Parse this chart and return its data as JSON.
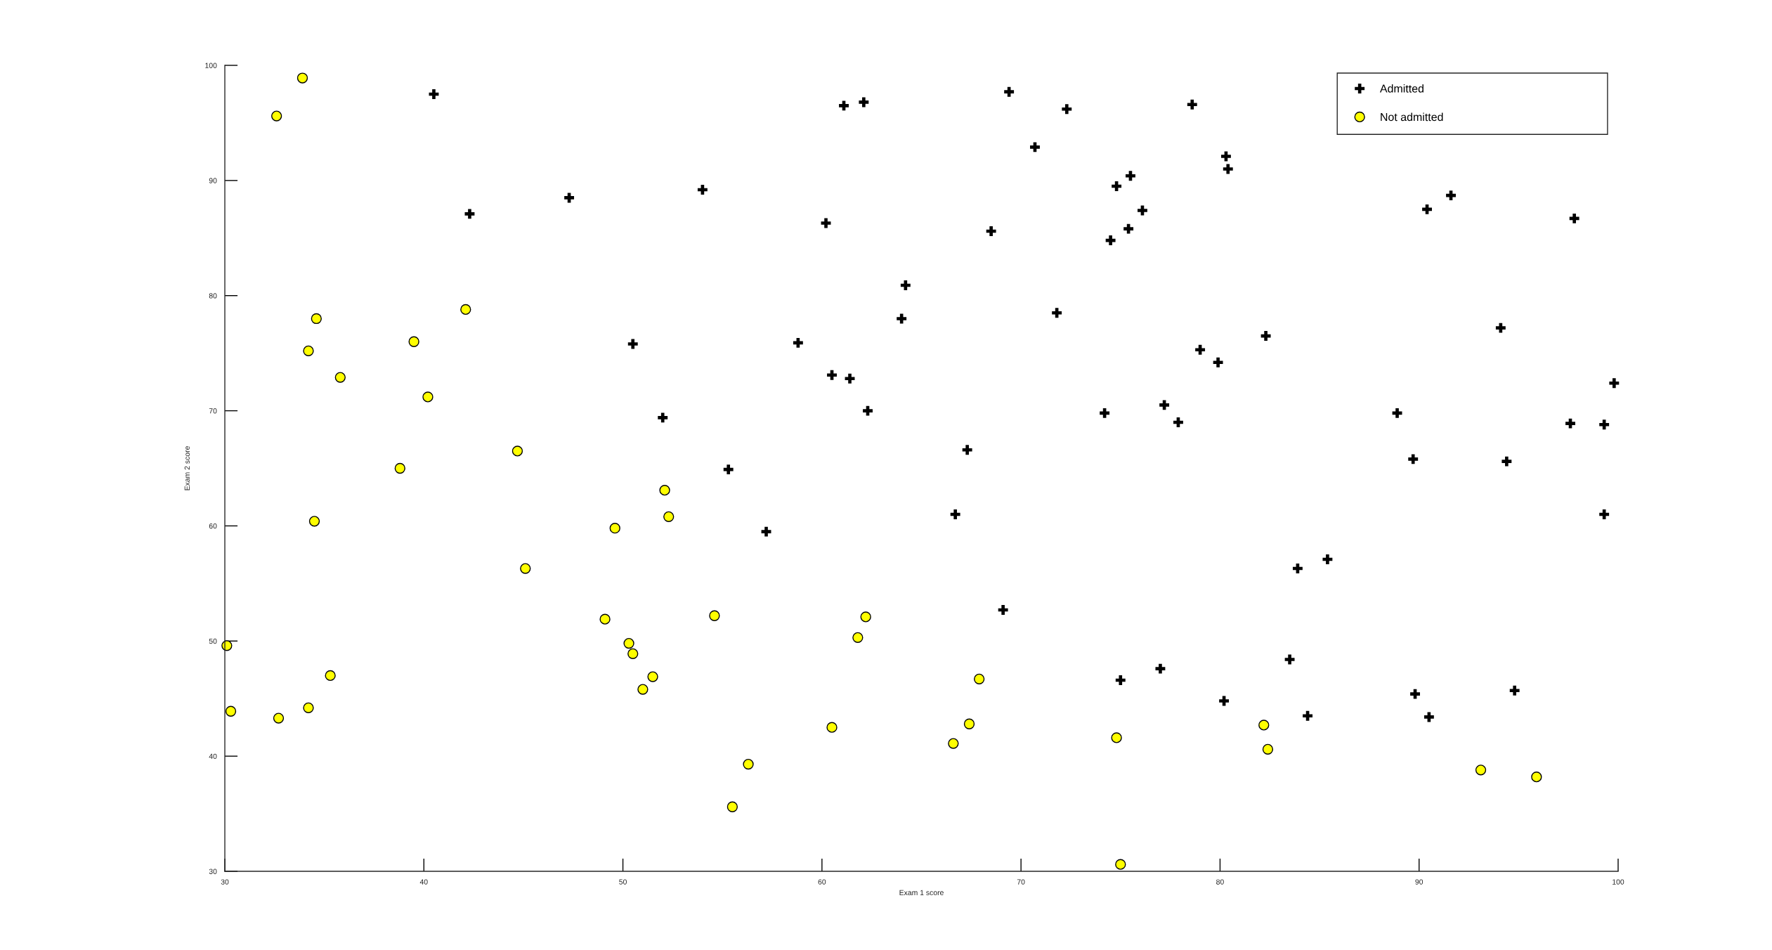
{
  "chart_data": {
    "type": "scatter",
    "xlabel": "Exam 1 score",
    "ylabel": "Exam 2 score",
    "xlim": [
      30,
      100
    ],
    "ylim": [
      30,
      100
    ],
    "xticks": [
      30,
      40,
      50,
      60,
      70,
      80,
      90,
      100
    ],
    "yticks": [
      30,
      40,
      50,
      60,
      70,
      80,
      90,
      100
    ],
    "grid": false,
    "legend": "top right",
    "series": [
      {
        "name": "Admitted",
        "color": "#000000",
        "marker": "cross",
        "x": [
          60.2,
          79.0,
          61.1,
          75.0,
          76.1,
          84.4,
          82.3,
          69.4,
          54.0,
          69.1,
          70.7,
          77.0,
          89.7,
          77.9,
          62.3,
          80.2,
          61.4,
          85.4,
          52.0,
          64.2,
          83.9,
          94.4,
          77.2,
          97.8,
          62.1,
          91.6,
          79.9,
          99.3,
          90.5,
          97.6,
          74.2,
          71.8,
          75.4,
          40.5,
          80.3,
          66.7,
          64.0,
          72.3,
          60.5,
          58.8,
          99.8,
          47.3,
          50.5,
          88.9,
          94.8,
          67.3,
          57.2,
          80.4,
          68.5,
          75.5,
          78.6,
          94.1,
          90.4,
          74.5,
          89.8,
          83.5,
          42.3,
          99.3,
          55.3,
          74.8
        ],
        "values": [
          86.3,
          75.3,
          96.5,
          46.6,
          87.4,
          43.5,
          76.5,
          97.7,
          89.2,
          52.7,
          92.9,
          47.6,
          65.8,
          69.0,
          70.0,
          44.8,
          72.8,
          57.1,
          69.4,
          80.9,
          56.3,
          65.6,
          70.5,
          86.7,
          96.8,
          88.7,
          74.2,
          61.0,
          43.4,
          68.9,
          69.8,
          78.5,
          85.8,
          97.5,
          92.1,
          61.0,
          78.0,
          96.2,
          73.1,
          75.9,
          72.4,
          88.5,
          75.8,
          69.8,
          45.7,
          66.6,
          59.5,
          91.0,
          85.6,
          90.4,
          96.6,
          77.2,
          87.5,
          84.8,
          45.4,
          48.4,
          87.1,
          68.8,
          64.9,
          89.5
        ]
      },
      {
        "name": "Not admitted",
        "color": "#ffff00",
        "marker": "circle",
        "x": [
          34.6,
          30.3,
          35.8,
          45.1,
          95.9,
          75.0,
          39.5,
          67.9,
          67.4,
          50.5,
          34.2,
          93.1,
          61.8,
          38.8,
          52.1,
          40.2,
          54.6,
          33.9,
          74.8,
          34.2,
          51.5,
          82.4,
          51.0,
          62.2,
          34.5,
          50.3,
          49.6,
          32.6,
          35.3,
          56.3,
          30.1,
          44.7,
          66.6,
          49.1,
          32.7,
          60.5,
          82.2,
          42.1,
          52.3,
          55.5
        ],
        "values": [
          78.0,
          43.9,
          72.9,
          56.3,
          38.2,
          30.6,
          76.0,
          46.7,
          42.8,
          48.9,
          44.2,
          38.8,
          50.3,
          65.0,
          63.1,
          71.2,
          52.2,
          98.9,
          41.6,
          75.2,
          46.9,
          40.6,
          45.8,
          52.1,
          60.4,
          49.8,
          59.8,
          95.6,
          47.0,
          39.3,
          49.6,
          66.5,
          41.1,
          51.9,
          43.3,
          42.5,
          42.7,
          78.8,
          60.8,
          35.6
        ]
      }
    ]
  }
}
